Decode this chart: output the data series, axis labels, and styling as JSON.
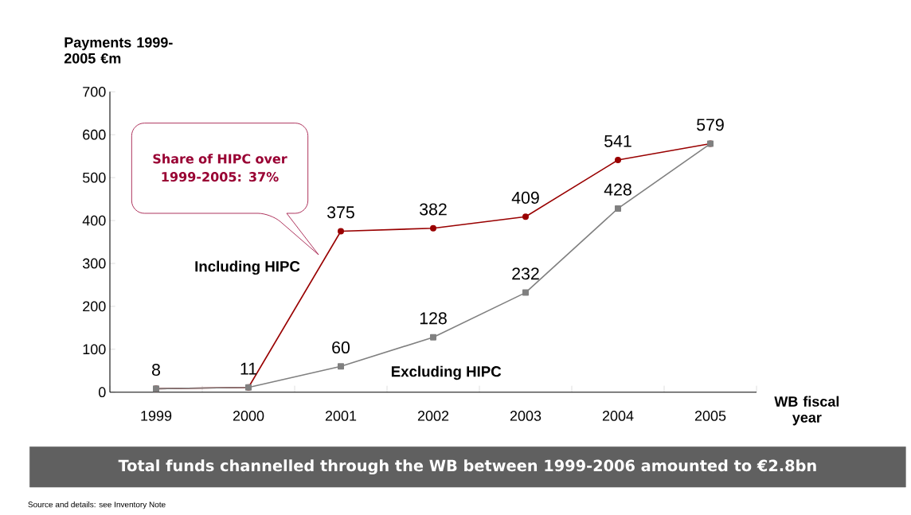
{
  "chart_data": {
    "type": "line",
    "ylabel": "Payments 1999-2005 €m",
    "xlabel": "WB fiscal year",
    "categories": [
      "1999",
      "2000",
      "2001",
      "2002",
      "2003",
      "2004",
      "2005"
    ],
    "series": [
      {
        "name": "Including HIPC",
        "color": "#990000",
        "marker": "circle",
        "values": [
          8,
          11,
          375,
          382,
          409,
          541,
          579
        ],
        "value_labels": [
          "8",
          "11",
          "375",
          "382",
          "409",
          "541",
          "579"
        ]
      },
      {
        "name": "Excluding HIPC",
        "color": "#808080",
        "marker": "square",
        "values": [
          8,
          11,
          60,
          128,
          232,
          428,
          579
        ],
        "value_labels": [
          null,
          null,
          "60",
          "128",
          "232",
          "428",
          null
        ]
      }
    ],
    "ylim": [
      0,
      700
    ],
    "yticks": [
      0,
      100,
      200,
      300,
      400,
      500,
      600,
      700
    ],
    "grid": false,
    "legend": false,
    "annotations": [
      "Share of HIPC over 1999-2005: 37%",
      "Total funds channelled through the WB between 1999-2006 amounted to €2.8bn",
      "Source and details: see Inventory Note"
    ]
  }
}
